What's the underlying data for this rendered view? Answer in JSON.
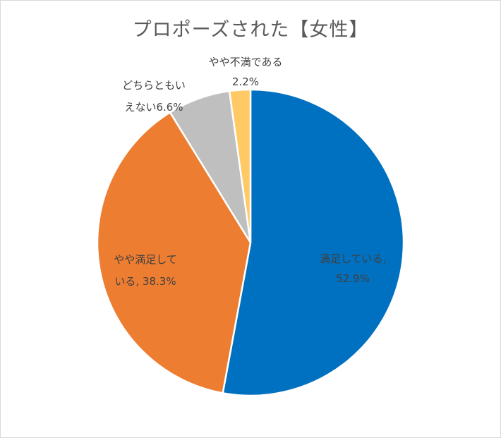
{
  "chart_data": {
    "type": "pie",
    "title": "プロポーズされた【女性】",
    "slices": [
      {
        "line1": "満足している,",
        "line2": "52.9%",
        "value": 52.9,
        "color": "#0070c0"
      },
      {
        "line1": "やや満足して",
        "line2": "いる, 38.3%",
        "value": 38.3,
        "color": "#ed7d31"
      },
      {
        "line1": "どちらともい",
        "line2": "えない6.6%",
        "value": 6.6,
        "color": "#bfbfbf"
      },
      {
        "line1": "やや不満である",
        "line2": "2.2%",
        "value": 2.2,
        "color": "#ffc966"
      }
    ],
    "legend": "none"
  }
}
